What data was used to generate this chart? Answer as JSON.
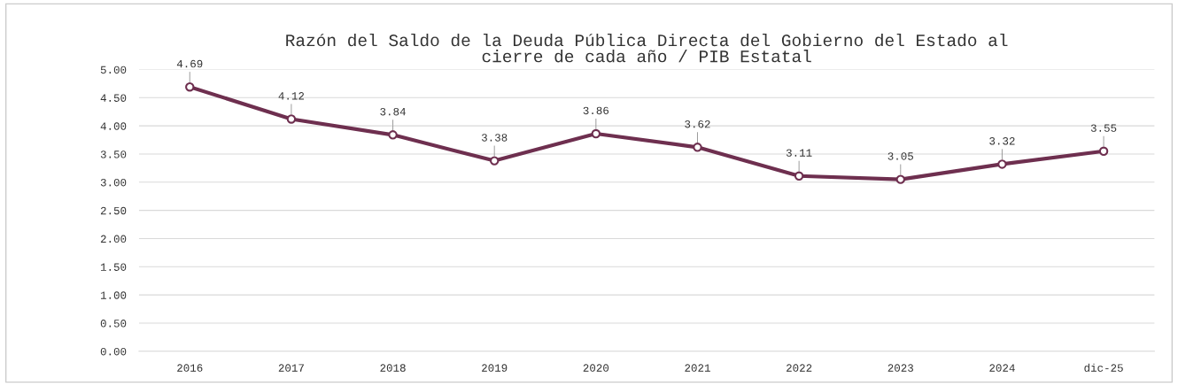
{
  "chart_data": {
    "type": "line",
    "title": "Razón del Saldo de la Deuda Pública Directa del Gobierno del Estado al\ncierre de cada año / PIB Estatal",
    "categories": [
      "2016",
      "2017",
      "2018",
      "2019",
      "2020",
      "2021",
      "2022",
      "2023",
      "2024",
      "dic-25"
    ],
    "series": [
      {
        "color": "#6e2f4f",
        "values": [
          4.69,
          4.12,
          3.84,
          3.38,
          3.86,
          3.62,
          3.11,
          3.05,
          3.32,
          3.55
        ]
      }
    ],
    "ylim": [
      0,
      5
    ],
    "yticks": [
      {
        "value": 0,
        "label": "0.00"
      },
      {
        "value": 0.5,
        "label": "0.50"
      },
      {
        "value": 1,
        "label": "1.00"
      },
      {
        "value": 1.5,
        "label": "1.50"
      },
      {
        "value": 2,
        "label": "2.00"
      },
      {
        "value": 2.5,
        "label": "2.50"
      },
      {
        "value": 3,
        "label": "3.00"
      },
      {
        "value": 3.5,
        "label": "3.50"
      },
      {
        "value": 4,
        "label": "4.00"
      },
      {
        "value": 4.5,
        "label": "4.50"
      },
      {
        "value": 5,
        "label": "5.00"
      }
    ],
    "grid": "y",
    "marker": "circle",
    "line_style": "solid",
    "data_labels": true
  }
}
